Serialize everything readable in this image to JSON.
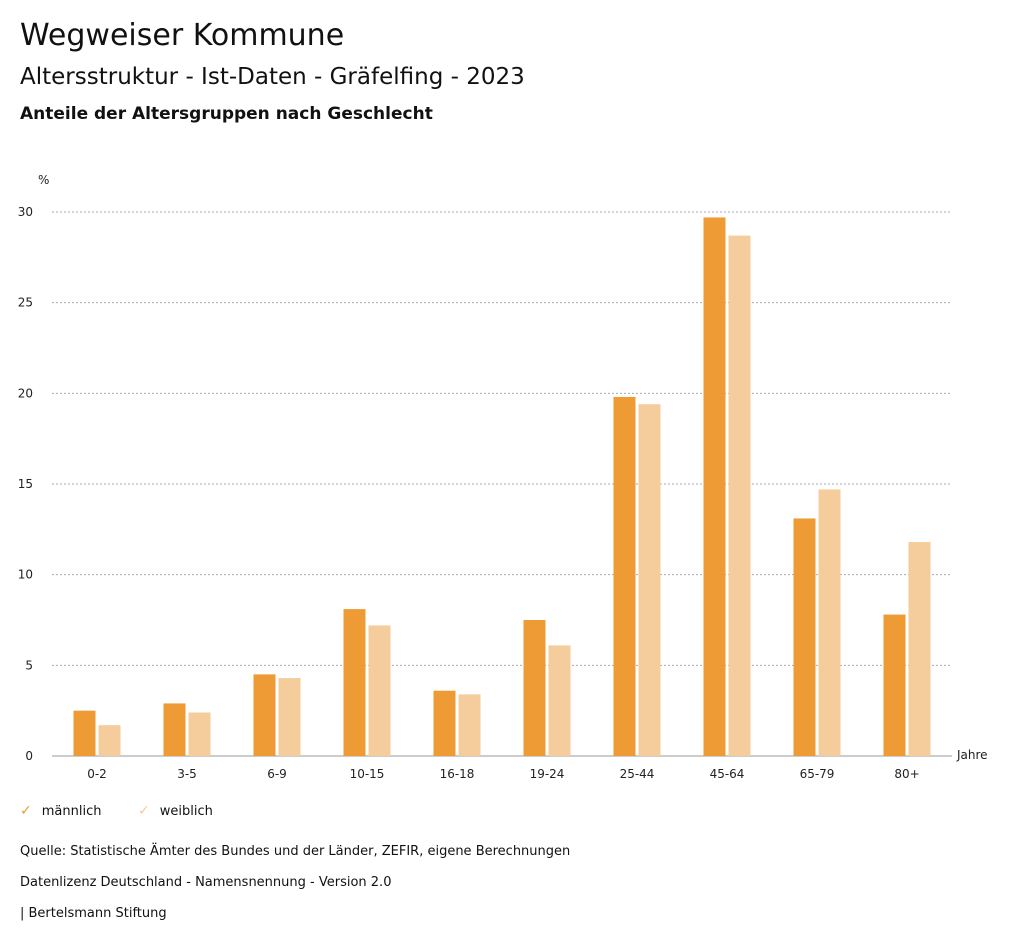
{
  "header": {
    "title": "Wegweiser Kommune",
    "subtitle": "Altersstruktur - Ist-Daten - Gräfelfing - 2023",
    "chart_title": "Anteile der Altersgruppen nach Geschlecht"
  },
  "colors": {
    "male": "#EE9A35",
    "female": "#F5CC9C"
  },
  "chart_data": {
    "type": "bar",
    "title": "Anteile der Altersgruppen nach Geschlecht",
    "xlabel": "Jahre",
    "ylabel": "%",
    "ylim": [
      0,
      30
    ],
    "yticks": [
      0,
      5,
      10,
      15,
      20,
      25,
      30
    ],
    "grid": true,
    "legend": "bottom-left",
    "categories": [
      "0-2",
      "3-5",
      "6-9",
      "10-15",
      "16-18",
      "19-24",
      "25-44",
      "45-64",
      "65-79",
      "80+"
    ],
    "series": [
      {
        "name": "männlich",
        "values": [
          2.5,
          2.9,
          4.5,
          8.1,
          3.6,
          7.5,
          19.8,
          29.7,
          13.1,
          7.8
        ]
      },
      {
        "name": "weiblich",
        "values": [
          1.7,
          2.4,
          4.3,
          7.2,
          3.4,
          6.1,
          19.4,
          28.7,
          14.7,
          11.8
        ]
      }
    ]
  },
  "footer": {
    "source": "Quelle: Statistische Ämter des Bundes und der Länder, ZEFIR, eigene Berechnungen",
    "license": "Datenlizenz Deutschland - Namensnennung - Version 2.0",
    "brand": "| Bertelsmann Stiftung"
  }
}
